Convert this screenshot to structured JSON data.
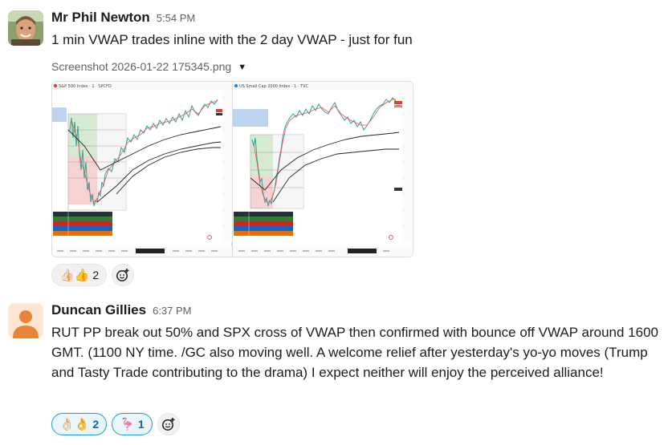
{
  "messages": [
    {
      "author": "Mr Phil Newton",
      "time": "5:54 PM",
      "text": "1 min VWAP trades inline with the 2 day VWAP - just for fun",
      "attachment": {
        "filename": "Screenshot 2026-01-22 175345.png",
        "caret_icon": "caret-down-icon"
      },
      "reactions": [
        {
          "emoji": "👍🏻👍",
          "count": "2",
          "mine": false
        }
      ]
    },
    {
      "author": "Duncan Gillies",
      "time": "6:37 PM",
      "text": "RUT PP break out 50% and SPX cross  of VWAP then confirmed with bounce off  VWAP around  1600 GMT. (1100 NY time.  /GC  also moving well.  A welcome relief after yesterday's yo-yo moves (Trump and Tasty Trade contributing to the drama)  I expect neither will enjoy the perceived alliance!",
      "reactions": [
        {
          "emoji": "👌🏻👌",
          "count": "2",
          "mine": true
        },
        {
          "emoji": "🦩",
          "count": "1",
          "mine": true
        }
      ]
    }
  ],
  "add_reaction_icon": "add-reaction-icon",
  "colors": {
    "accent": "#1264a3",
    "bull": "#26a69a",
    "bear": "#ef5350"
  }
}
